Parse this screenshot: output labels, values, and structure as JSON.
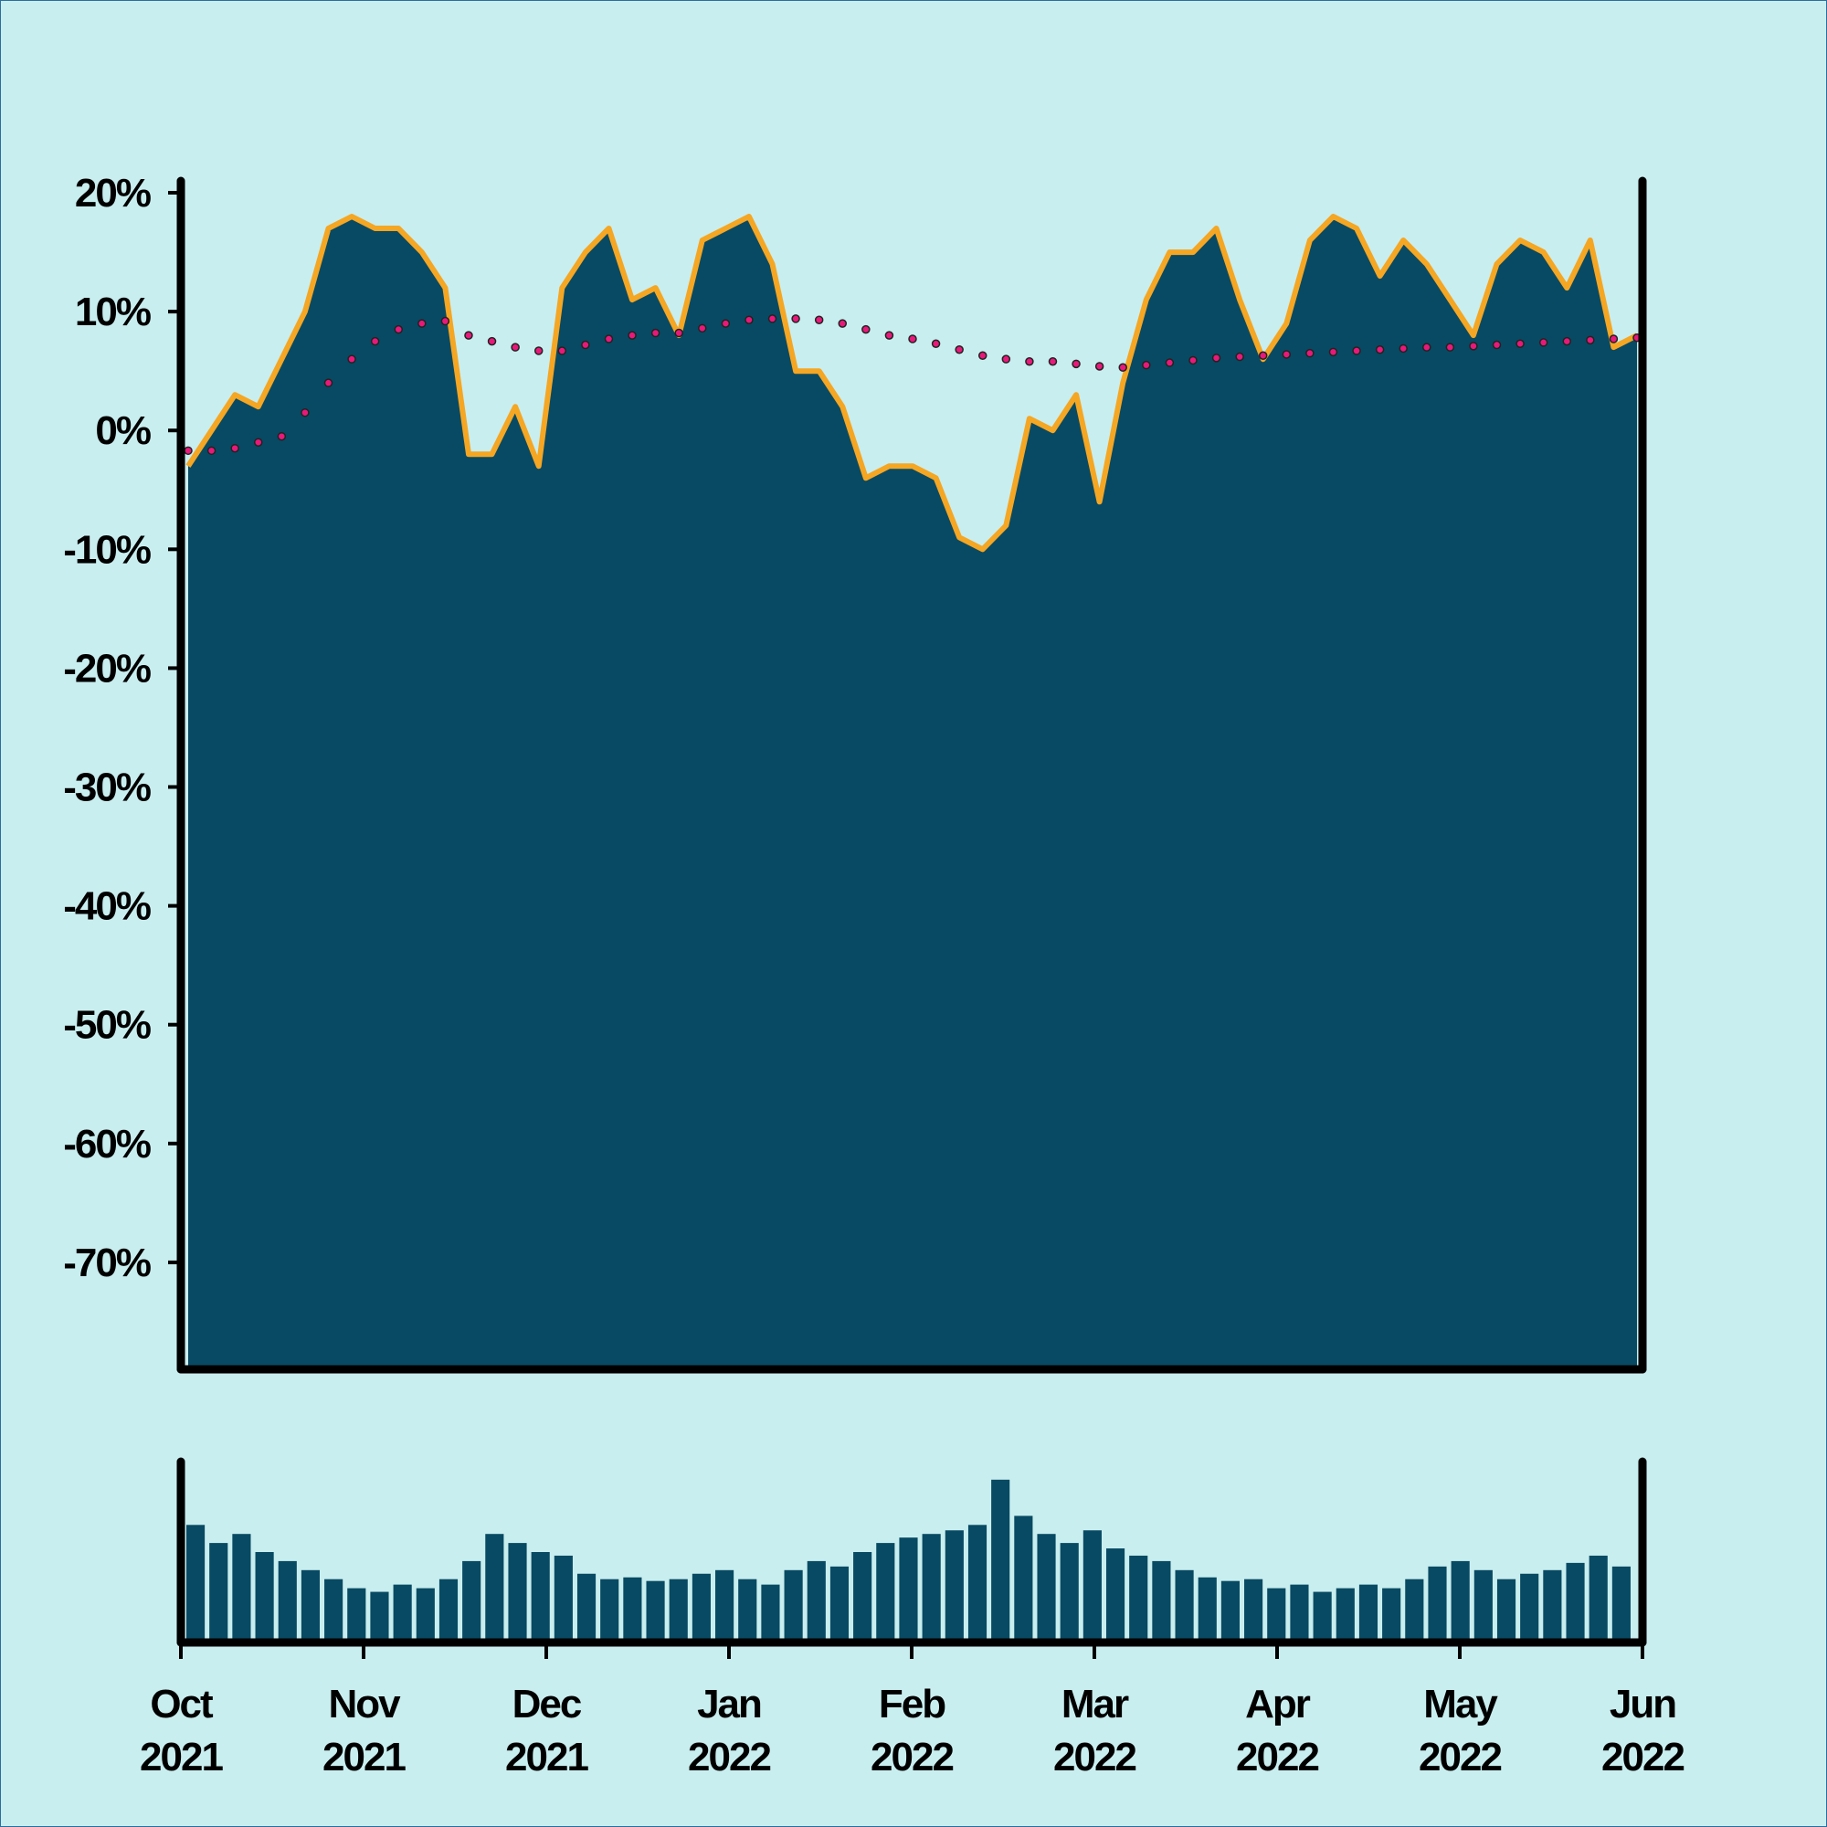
{
  "chart_data": [
    {
      "type": "area",
      "xticks": [
        {
          "month": "Oct",
          "year": "2021"
        },
        {
          "month": "Nov",
          "year": "2021"
        },
        {
          "month": "Dec",
          "year": "2021"
        },
        {
          "month": "Jan",
          "year": "2022"
        },
        {
          "month": "Feb",
          "year": "2022"
        },
        {
          "month": "Mar",
          "year": "2022"
        },
        {
          "month": "Apr",
          "year": "2022"
        },
        {
          "month": "May",
          "year": "2022"
        },
        {
          "month": "Jun",
          "year": "2022"
        }
      ],
      "ylim": [
        -79,
        21
      ],
      "yticks": [
        {
          "value": 20,
          "label": "20%"
        },
        {
          "value": 10,
          "label": "10%"
        },
        {
          "value": 0,
          "label": "0%"
        },
        {
          "value": -10,
          "label": "-10%"
        },
        {
          "value": -20,
          "label": "-20%"
        },
        {
          "value": -30,
          "label": "-30%"
        },
        {
          "value": -40,
          "label": "-40%"
        },
        {
          "value": -50,
          "label": "-50%"
        },
        {
          "value": -60,
          "label": "-60%"
        },
        {
          "value": -70,
          "label": "-70%"
        }
      ],
      "series": [
        {
          "color": "#084a63",
          "line_color": "#f5a623",
          "values": [
            -3,
            0,
            3,
            2,
            6,
            10,
            17,
            18,
            17,
            17,
            15,
            12,
            -2,
            -2,
            2,
            -3,
            12,
            15,
            17,
            11,
            12,
            8,
            16,
            17,
            18,
            14,
            5,
            5,
            2,
            -4,
            -3,
            -3,
            -4,
            -9,
            -10,
            -8,
            1,
            0,
            3,
            -6,
            4,
            11,
            15,
            15,
            17,
            11,
            6,
            9,
            16,
            18,
            17,
            13,
            16,
            14,
            11,
            8,
            14,
            16,
            15,
            12,
            16,
            7,
            8
          ]
        },
        {
          "color": "#e8197a",
          "values": [
            -1.7,
            -1.7,
            -1.5,
            -1,
            -0.5,
            1.5,
            4,
            6,
            7.5,
            8.5,
            9,
            9.2,
            8,
            7.5,
            7,
            6.7,
            6.7,
            7.2,
            7.7,
            8,
            8.2,
            8.2,
            8.6,
            9,
            9.3,
            9.4,
            9.4,
            9.3,
            9,
            8.5,
            8,
            7.7,
            7.3,
            6.8,
            6.3,
            6,
            5.8,
            5.8,
            5.6,
            5.4,
            5.3,
            5.5,
            5.7,
            5.9,
            6.1,
            6.2,
            6.3,
            6.4,
            6.5,
            6.6,
            6.7,
            6.8,
            6.9,
            7,
            7,
            7.1,
            7.2,
            7.3,
            7.4,
            7.5,
            7.6,
            7.7,
            7.8
          ]
        }
      ]
    },
    {
      "type": "bar",
      "color": "#084a63",
      "ylim": [
        0,
        100
      ],
      "values": [
        65,
        55,
        60,
        50,
        45,
        40,
        35,
        30,
        28,
        32,
        30,
        35,
        45,
        60,
        55,
        50,
        48,
        38,
        35,
        36,
        34,
        35,
        38,
        40,
        35,
        32,
        40,
        45,
        42,
        50,
        55,
        58,
        60,
        62,
        65,
        90,
        70,
        60,
        55,
        62,
        52,
        48,
        45,
        40,
        36,
        34,
        35,
        30,
        32,
        28,
        30,
        32,
        30,
        35,
        42,
        45,
        40,
        35,
        38,
        40,
        44,
        48,
        42
      ]
    }
  ]
}
